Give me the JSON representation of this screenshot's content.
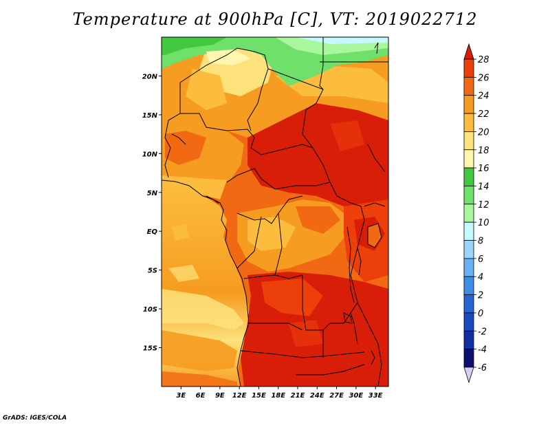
{
  "title": "Temperature at 900hPa [C], VT: 2019022712",
  "credit": "GrADS: IGES/COLA",
  "map": {
    "lat_labels": [
      "20N",
      "15N",
      "10N",
      "5N",
      "EQ",
      "5S",
      "10S",
      "15S"
    ],
    "lat_values": [
      20,
      15,
      10,
      5,
      0,
      -5,
      -10,
      -15
    ],
    "lon_labels": [
      "3E",
      "6E",
      "9E",
      "12E",
      "15E",
      "18E",
      "21E",
      "24E",
      "27E",
      "30E",
      "33E"
    ],
    "lon_values": [
      3,
      6,
      9,
      12,
      15,
      18,
      21,
      24,
      27,
      30,
      33
    ],
    "lon_range": [
      0,
      35
    ],
    "lat_range": [
      -20,
      25
    ]
  },
  "colorbar": {
    "labels": [
      "28",
      "26",
      "24",
      "22",
      "20",
      "18",
      "16",
      "14",
      "12",
      "10",
      "8",
      "6",
      "4",
      "2",
      "0",
      "-2",
      "-4",
      "-6"
    ],
    "colors": [
      "#d81d08",
      "#ec3f0a",
      "#f16a13",
      "#f69c20",
      "#fcbd3f",
      "#fde27c",
      "#fff6b0",
      "#41c83f",
      "#6fe06a",
      "#a9f79c",
      "#c6f9ff",
      "#9ed4fb",
      "#69b1f5",
      "#3d8ee8",
      "#2564d4",
      "#1a4abf",
      "#1230a2",
      "#0c0f6e",
      "#d8d0f4"
    ]
  }
}
